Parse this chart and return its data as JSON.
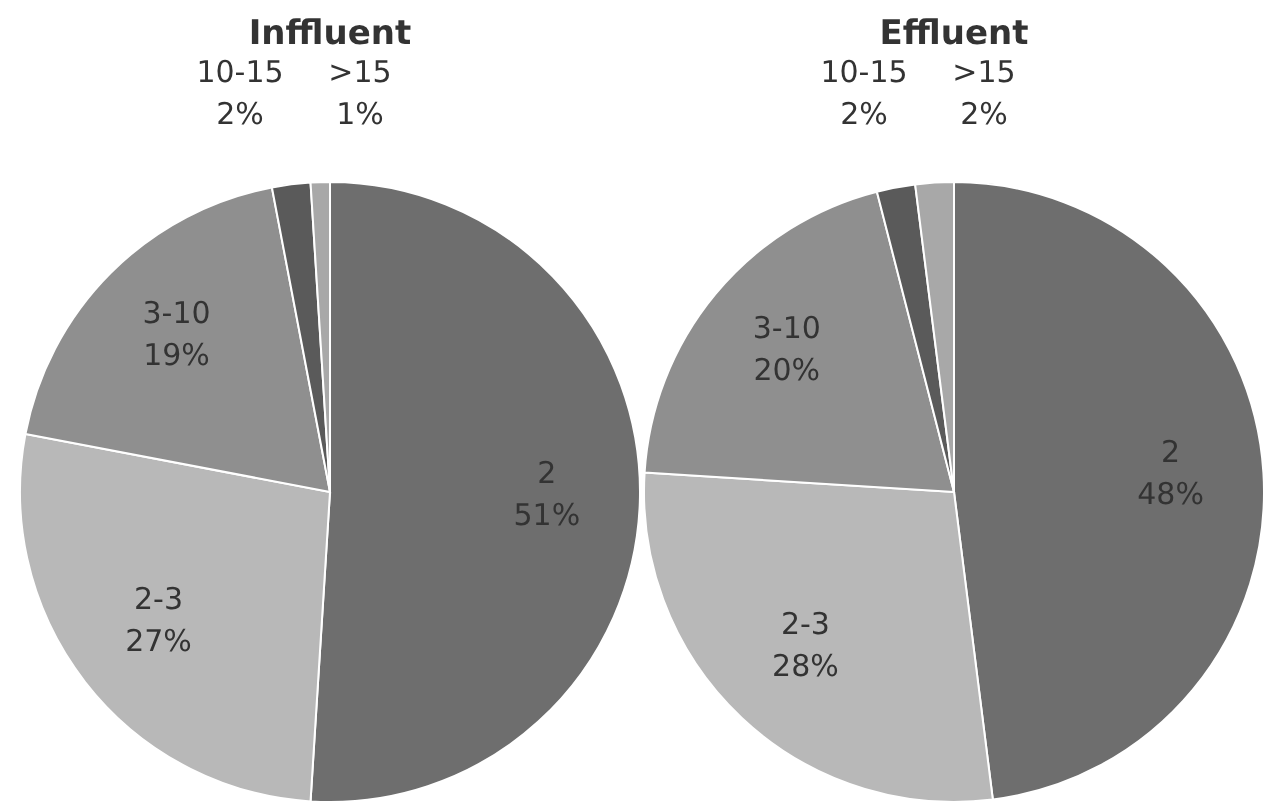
{
  "chart_data": [
    {
      "type": "pie",
      "title": "Inffluent",
      "categories": [
        "2",
        "2-3",
        "3-10",
        "10-15",
        ">15"
      ],
      "values": [
        51,
        27,
        19,
        2,
        1
      ],
      "value_labels": [
        "51%",
        "27%",
        "19%",
        "2%",
        "1%"
      ],
      "colors": [
        "#6e6e6e",
        "#b8b8b8",
        "#8f8f8f",
        "#5a5a5a",
        "#a8a8a8"
      ]
    },
    {
      "type": "pie",
      "title": "Effluent",
      "categories": [
        "2",
        "2-3",
        "3-10",
        "10-15",
        ">15"
      ],
      "values": [
        48,
        28,
        20,
        2,
        2
      ],
      "value_labels": [
        "48%",
        "28%",
        "20%",
        "2%",
        "2%"
      ],
      "colors": [
        "#6e6e6e",
        "#b8b8b8",
        "#8f8f8f",
        "#5a5a5a",
        "#a8a8a8"
      ]
    }
  ]
}
